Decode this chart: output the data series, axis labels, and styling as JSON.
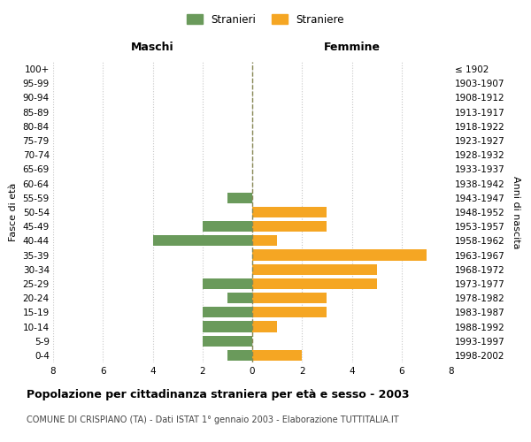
{
  "age_groups": [
    "0-4",
    "5-9",
    "10-14",
    "15-19",
    "20-24",
    "25-29",
    "30-34",
    "35-39",
    "40-44",
    "45-49",
    "50-54",
    "55-59",
    "60-64",
    "65-69",
    "70-74",
    "75-79",
    "80-84",
    "85-89",
    "90-94",
    "95-99",
    "100+"
  ],
  "birth_years": [
    "1998-2002",
    "1993-1997",
    "1988-1992",
    "1983-1987",
    "1978-1982",
    "1973-1977",
    "1968-1972",
    "1963-1967",
    "1958-1962",
    "1953-1957",
    "1948-1952",
    "1943-1947",
    "1938-1942",
    "1933-1937",
    "1928-1932",
    "1923-1927",
    "1918-1922",
    "1913-1917",
    "1908-1912",
    "1903-1907",
    "≤ 1902"
  ],
  "maschi": [
    1,
    2,
    2,
    2,
    1,
    2,
    0,
    0,
    4,
    2,
    0,
    1,
    0,
    0,
    0,
    0,
    0,
    0,
    0,
    0,
    0
  ],
  "femmine": [
    2,
    0,
    1,
    3,
    3,
    5,
    5,
    7,
    1,
    3,
    3,
    0,
    0,
    0,
    0,
    0,
    0,
    0,
    0,
    0,
    0
  ],
  "color_maschi": "#6a9a5b",
  "color_femmine": "#f5a623",
  "title": "Popolazione per cittadinanza straniera per età e sesso - 2003",
  "subtitle": "COMUNE DI CRISPIANO (TA) - Dati ISTAT 1° gennaio 2003 - Elaborazione TUTTITALIA.IT",
  "xlabel_left": "Maschi",
  "xlabel_right": "Femmine",
  "ylabel_left": "Fasce di età",
  "ylabel_right": "Anni di nascita",
  "legend_maschi": "Stranieri",
  "legend_femmine": "Straniere",
  "xlim": 8,
  "background_color": "#ffffff",
  "grid_color": "#c8c8c8"
}
